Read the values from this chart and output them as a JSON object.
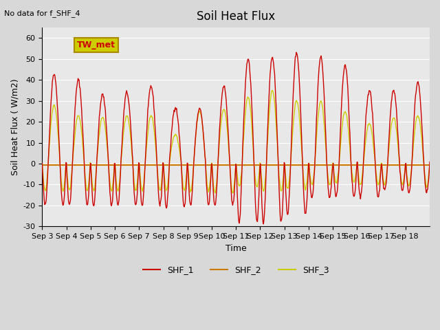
{
  "title": "Soil Heat Flux",
  "top_left_text": "No data for f_SHF_4",
  "ylabel": "Soil Heat Flux ( W/m2)",
  "xlabel": "Time",
  "ylim": [
    -30,
    65
  ],
  "yticks": [
    -30,
    -20,
    -10,
    0,
    10,
    20,
    30,
    40,
    50,
    60
  ],
  "xtick_labels": [
    "Sep 3",
    "Sep 4",
    "Sep 5",
    "Sep 6",
    "Sep 7",
    "Sep 8",
    "Sep 9",
    "Sep 10",
    "Sep 11",
    "Sep 12",
    "Sep 13",
    "Sep 14",
    "Sep 15",
    "Sep 16",
    "Sep 17",
    "Sep 18"
  ],
  "legend_labels": [
    "SHF_1",
    "SHF_2",
    "SHF_3"
  ],
  "legend_colors": [
    "#cc0000",
    "#cc7700",
    "#cccc00"
  ],
  "annotation_box_text": "TW_met",
  "annotation_box_color": "#cccc00",
  "annotation_text_color": "#cc0000",
  "shf1_color": "#cc0000",
  "shf2_color": "#cc7700",
  "shf3_color": "#cccc00",
  "num_days": 16,
  "points_per_day": 48,
  "day_peaks1": [
    43,
    40,
    33,
    34,
    37,
    27,
    26,
    37,
    50,
    51,
    53,
    51,
    47,
    35,
    35,
    39
  ],
  "day_troughs1": [
    -20,
    -20,
    -20,
    -20,
    -20,
    -21,
    -20,
    -20,
    -28,
    -28,
    -24,
    -16,
    -16,
    -16,
    -13,
    -14
  ],
  "day_peaks3": [
    28,
    23,
    22,
    23,
    23,
    14,
    25,
    26,
    32,
    35,
    30,
    30,
    25,
    19,
    22,
    23
  ],
  "day_troughs3": [
    -13,
    -13,
    -13,
    -13,
    -13,
    -13,
    -13,
    -14,
    -11,
    -13,
    -12,
    -10,
    -9,
    -10,
    -10,
    -11
  ]
}
